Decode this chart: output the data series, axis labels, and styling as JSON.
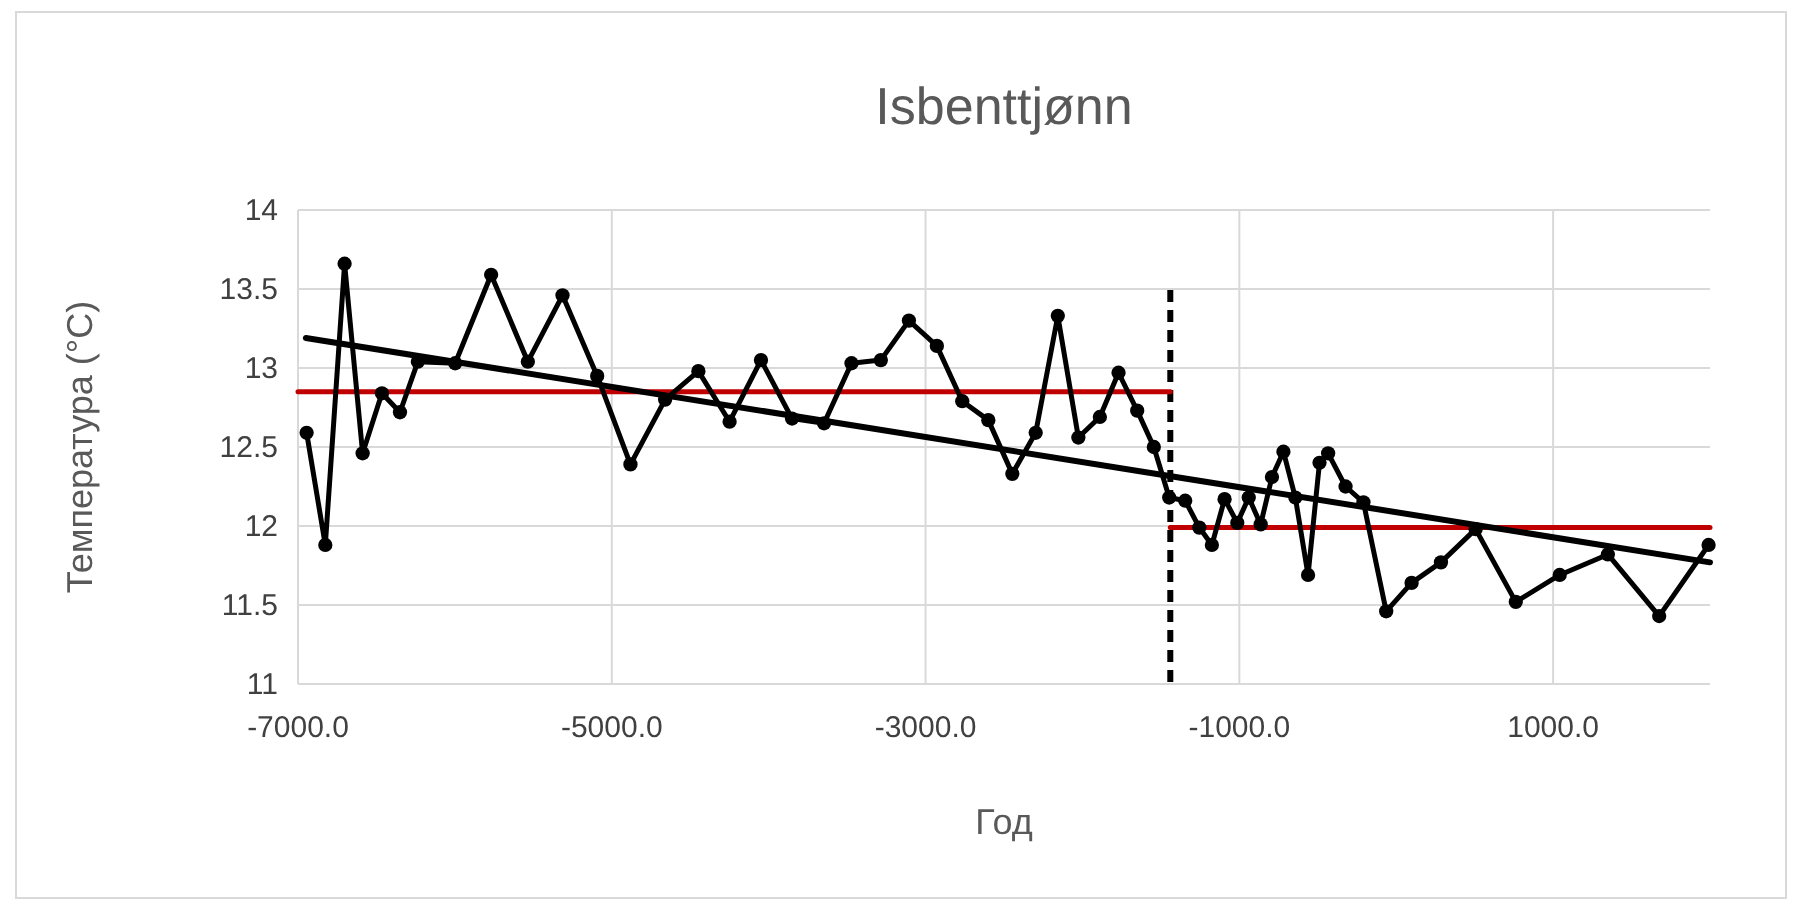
{
  "chart_data": {
    "type": "line",
    "title": "Isbenttjønn",
    "xlabel": "Год",
    "ylabel": "Температура (°C)",
    "xlim": [
      -7000,
      2000
    ],
    "xticks": [
      {
        "value": -7000,
        "label": "-7000.0"
      },
      {
        "value": -5000,
        "label": "-5000.0"
      },
      {
        "value": -3000,
        "label": "-3000.0"
      },
      {
        "value": -1000,
        "label": "-1000.0"
      },
      {
        "value": 1000,
        "label": "1000.0"
      }
    ],
    "ylim": [
      11,
      14
    ],
    "yticks": [
      11,
      11.5,
      12,
      12.5,
      13,
      13.5,
      14
    ],
    "grid": true,
    "marker": "circle",
    "series": [
      {
        "color": "#c00000",
        "marker": "none",
        "x": [
          -7000,
          -1440
        ],
        "values": [
          12.85,
          12.85
        ]
      },
      {
        "color": "#c00000",
        "marker": "none",
        "x": [
          -1440,
          2000
        ],
        "values": [
          11.99,
          11.99
        ]
      },
      {
        "color": "#000000",
        "x": [
          -6945,
          -6826,
          -6703,
          -6588,
          -6465,
          -6350,
          -6236,
          -5998,
          -5769,
          -5535,
          -5314,
          -5093,
          -4881,
          -4660,
          -4448,
          -4249,
          -4049,
          -3851,
          -3647,
          -3472,
          -3285,
          -3106,
          -2928,
          -2766,
          -2600,
          -2447,
          -2298,
          -2157,
          -2026,
          -1889,
          -1770,
          -1651,
          -1545,
          -1447,
          -1345,
          -1255,
          -1175,
          -1094,
          -1013,
          -940,
          -864,
          -792,
          -719,
          -643,
          -562,
          -489,
          -434,
          -323,
          -209,
          -64,
          98,
          285,
          506,
          762,
          1042,
          1349,
          1676,
          1991
        ],
        "values": [
          12.59,
          11.88,
          13.66,
          12.46,
          12.84,
          12.72,
          13.04,
          13.03,
          13.59,
          13.04,
          13.46,
          12.95,
          12.39,
          12.8,
          12.98,
          12.66,
          13.05,
          12.68,
          12.65,
          13.03,
          13.05,
          13.3,
          13.14,
          12.79,
          12.67,
          12.33,
          12.59,
          13.33,
          12.56,
          12.69,
          12.97,
          12.73,
          12.5,
          12.18,
          12.16,
          11.99,
          11.88,
          12.17,
          12.02,
          12.18,
          12.01,
          12.31,
          12.47,
          12.18,
          11.69,
          12.4,
          12.46,
          12.25,
          12.15,
          11.46,
          11.64,
          11.77,
          11.98,
          11.52,
          11.69,
          11.82,
          11.43,
          11.88
        ]
      },
      {
        "color": "#000000",
        "marker": "none",
        "x": [
          -6950,
          2000
        ],
        "values": [
          13.19,
          11.77
        ]
      }
    ],
    "ref_lines": [
      {
        "axis": "x",
        "value": -1440,
        "color": "#000000",
        "line_style": "dashed"
      }
    ]
  }
}
